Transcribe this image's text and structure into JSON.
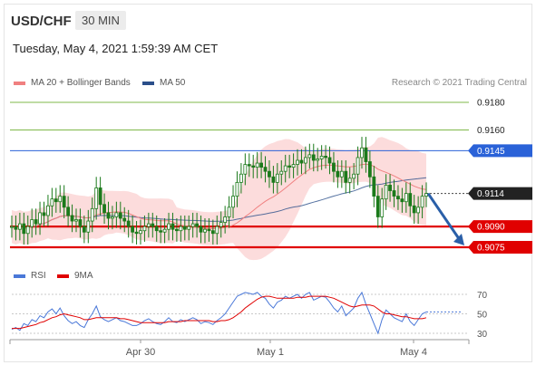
{
  "header": {
    "symbol": "USD/CHF",
    "timeframe": "30 MIN",
    "timestamp": "Tuesday, May 4, 2021 1:59:39 AM CET"
  },
  "legend": {
    "ma20_label": "MA 20 + Bollinger Bands",
    "ma50_label": "MA 50",
    "credit": "Research © 2021 Trading Central",
    "rsi_label": "RSI",
    "rsi_ma_label": "9MA"
  },
  "colors": {
    "ma20": "#f08080",
    "ma50": "#2b4f8a",
    "bands": "#fbd0d0",
    "candle": "#1b7a1b",
    "resistance": "#2a62d8",
    "support": "#e00000",
    "target_green": "#7fb84a",
    "current": "#222222",
    "rsi": "#4a78d8",
    "rsi_ma": "#e00000",
    "arrow": "#2a5fa8"
  },
  "chart_data": [
    {
      "type": "candlestick",
      "title": "USD/CHF",
      "timeframe": "30 MIN",
      "x_ticks": [
        "Apr 30",
        "May 1",
        "May 4"
      ],
      "ylim": [
        0.907,
        0.9186
      ],
      "levels": [
        {
          "value": 0.918,
          "label": "0.9180",
          "kind": "target"
        },
        {
          "value": 0.916,
          "label": "0.9160",
          "kind": "target"
        },
        {
          "value": 0.9145,
          "label": "0.9145",
          "kind": "resistance"
        },
        {
          "value": 0.9114,
          "label": "0.9114",
          "kind": "current"
        },
        {
          "value": 0.909,
          "label": "0.9090",
          "kind": "support"
        },
        {
          "value": 0.9075,
          "label": "0.9075",
          "kind": "support"
        }
      ],
      "close_series": [
        0.909,
        0.9088,
        0.9092,
        0.9085,
        0.909,
        0.9095,
        0.9092,
        0.91,
        0.9098,
        0.9105,
        0.911,
        0.9108,
        0.9112,
        0.9104,
        0.9098,
        0.9094,
        0.9095,
        0.909,
        0.9086,
        0.9094,
        0.9103,
        0.9118,
        0.9106,
        0.91,
        0.9096,
        0.9097,
        0.91,
        0.9096,
        0.9094,
        0.909,
        0.9086,
        0.9085,
        0.9087,
        0.909,
        0.9092,
        0.909,
        0.9087,
        0.9086,
        0.9088,
        0.9092,
        0.9088,
        0.9087,
        0.909,
        0.9088,
        0.909,
        0.9092,
        0.909,
        0.9086,
        0.9088,
        0.9087,
        0.9085,
        0.909,
        0.9093,
        0.9097,
        0.9104,
        0.9112,
        0.9122,
        0.9128,
        0.9135,
        0.9134,
        0.9133,
        0.9136,
        0.9133,
        0.913,
        0.9126,
        0.9122,
        0.9128,
        0.913,
        0.9134,
        0.9133,
        0.9135,
        0.9138,
        0.9136,
        0.914,
        0.9142,
        0.9138,
        0.9139,
        0.9141,
        0.914,
        0.9136,
        0.913,
        0.9126,
        0.913,
        0.9122,
        0.9125,
        0.9128,
        0.914,
        0.9147,
        0.9137,
        0.9126,
        0.9112,
        0.9097,
        0.911,
        0.912,
        0.9116,
        0.9112,
        0.911,
        0.9108,
        0.9114,
        0.9105,
        0.91,
        0.9104,
        0.9112,
        0.9114
      ],
      "rsi": {
        "ylim": [
          20,
          80
        ],
        "levels": [
          70,
          50,
          30
        ],
        "labels": [
          "70",
          "50",
          "30"
        ],
        "values": [
          34,
          36,
          33,
          40,
          38,
          44,
          42,
          48,
          46,
          52,
          55,
          50,
          56,
          48,
          43,
          40,
          42,
          38,
          36,
          44,
          50,
          58,
          47,
          44,
          42,
          44,
          46,
          43,
          42,
          40,
          38,
          38,
          40,
          43,
          45,
          42,
          40,
          39,
          42,
          46,
          42,
          41,
          44,
          42,
          44,
          46,
          44,
          40,
          42,
          41,
          39,
          43,
          46,
          50,
          56,
          62,
          68,
          70,
          72,
          71,
          70,
          72,
          68,
          66,
          60,
          56,
          62,
          64,
          68,
          66,
          68,
          70,
          66,
          70,
          72,
          64,
          66,
          68,
          67,
          62,
          56,
          52,
          58,
          48,
          52,
          56,
          66,
          72,
          60,
          50,
          40,
          30,
          44,
          54,
          50,
          46,
          44,
          42,
          50,
          42,
          38,
          44,
          50,
          52
        ]
      },
      "rsi_ma_values": [
        35,
        35,
        35,
        36,
        37,
        38,
        39,
        41,
        42,
        44,
        46,
        47,
        49,
        50,
        49,
        48,
        47,
        46,
        44,
        44,
        45,
        46,
        46,
        46,
        46,
        46,
        46,
        45,
        45,
        44,
        43,
        42,
        41,
        41,
        41,
        41,
        41,
        41,
        41,
        42,
        42,
        42,
        42,
        43,
        43,
        43,
        43,
        43,
        43,
        43,
        42,
        42,
        43,
        43,
        44,
        46,
        49,
        52,
        56,
        59,
        62,
        65,
        67,
        68,
        68,
        67,
        66,
        66,
        66,
        66,
        66,
        67,
        67,
        67,
        68,
        68,
        68,
        68,
        68,
        67,
        66,
        64,
        62,
        60,
        58,
        57,
        58,
        59,
        59,
        59,
        58,
        55,
        52,
        50,
        50,
        49,
        48,
        47,
        47,
        46,
        45,
        45,
        45,
        46
      ]
    }
  ]
}
